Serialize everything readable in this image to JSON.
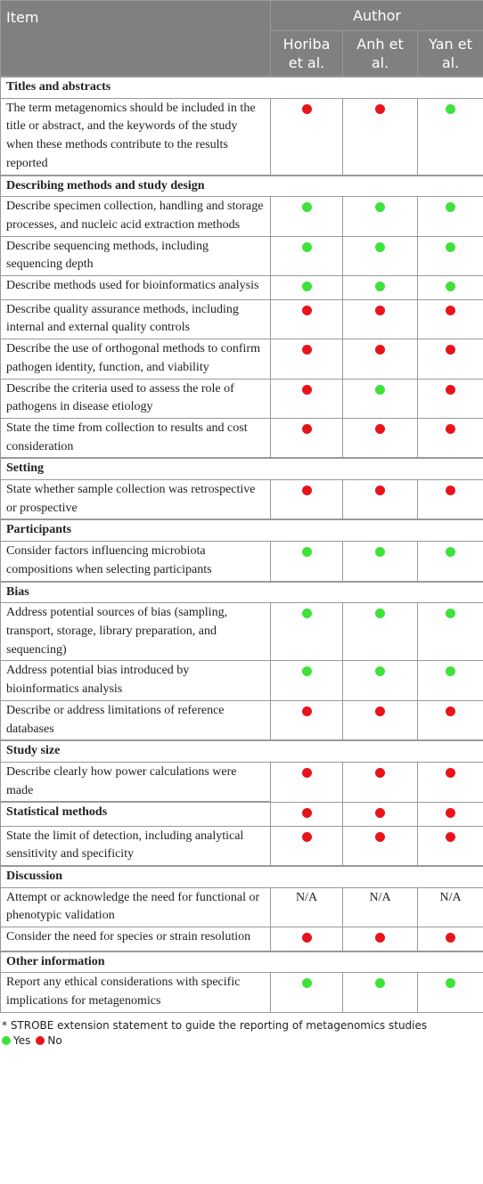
{
  "header": {
    "item": "Item",
    "author": "Author",
    "columns": [
      "Horiba et al.",
      "Anh et al.",
      "Yan et al."
    ]
  },
  "sections": [
    {
      "title": "Titles and abstracts",
      "rows": [
        {
          "item": "The term metagenomics should be included in the title or abstract, and the keywords of the study when these methods contribute to the results reported",
          "values": [
            "No",
            "No",
            "Yes"
          ]
        }
      ]
    },
    {
      "title": "Describing methods and study design",
      "rows": [
        {
          "item": "Describe specimen collection, handling and storage processes, and nucleic acid extraction methods",
          "values": [
            "Yes",
            "Yes",
            "Yes"
          ]
        },
        {
          "item": "Describe sequencing methods, including sequencing depth",
          "values": [
            "Yes",
            "Yes",
            "Yes"
          ]
        },
        {
          "item": "Describe methods used for bioinformatics analysis",
          "values": [
            "Yes",
            "Yes",
            "Yes"
          ]
        },
        {
          "item": "Describe quality assurance methods, including internal and external quality controls",
          "values": [
            "No",
            "No",
            "No"
          ]
        },
        {
          "item": "Describe the use of orthogonal methods to confirm pathogen identity, function, and viability",
          "values": [
            "No",
            "No",
            "No"
          ]
        },
        {
          "item": "Describe the criteria used to assess the role of pathogens in disease etiology",
          "values": [
            "No",
            "Yes",
            "No"
          ]
        },
        {
          "item": "State the time from collection to results and cost consideration",
          "values": [
            "No",
            "No",
            "No"
          ]
        }
      ]
    },
    {
      "title": "Setting",
      "rows": [
        {
          "item": "State whether sample collection was retrospective or prospective",
          "values": [
            "No",
            "No",
            "No"
          ]
        }
      ]
    },
    {
      "title": "Participants",
      "rows": [
        {
          "item": "Consider factors influencing microbiota compositions when selecting participants",
          "values": [
            "Yes",
            "Yes",
            "Yes"
          ]
        }
      ]
    },
    {
      "title": "Bias",
      "rows": [
        {
          "item": "Address potential sources of bias (sampling, transport, storage, library preparation, and sequencing)",
          "values": [
            "Yes",
            "Yes",
            "Yes"
          ]
        },
        {
          "item": "Address potential bias introduced by bioinformatics analysis",
          "values": [
            "Yes",
            "Yes",
            "Yes"
          ]
        },
        {
          "item": "Describe or address limitations of reference databases",
          "values": [
            "No",
            "No",
            "No"
          ]
        }
      ]
    },
    {
      "title": "Study size",
      "rows": [
        {
          "item": "Describe clearly how power calculations were made",
          "values": [
            "No",
            "No",
            "No"
          ]
        }
      ]
    },
    {
      "title": "Statistical methods",
      "values": [
        "No",
        "No",
        "No"
      ],
      "rows": [
        {
          "item": "State the limit of detection, including analytical sensitivity and specificity",
          "values": [
            "No",
            "No",
            "No"
          ]
        }
      ]
    },
    {
      "title": "Discussion",
      "rows": [
        {
          "item": "Attempt or acknowledge the need for functional or phenotypic validation",
          "values": [
            "N/A",
            "N/A",
            "N/A"
          ]
        },
        {
          "item": "Consider the need for species or strain resolution",
          "values": [
            "No",
            "No",
            "No"
          ]
        }
      ]
    },
    {
      "title": "Other information",
      "rows": [
        {
          "item": "Report any ethical considerations with specific implications for metagenomics",
          "values": [
            "Yes",
            "Yes",
            "Yes"
          ]
        }
      ]
    }
  ],
  "footnote": "* STROBE extension statement to guide the reporting of metagenomics studies",
  "legend": [
    {
      "label": "Yes",
      "color": "#3fe23a"
    },
    {
      "label": "No",
      "color": "#e8141c"
    }
  ]
}
